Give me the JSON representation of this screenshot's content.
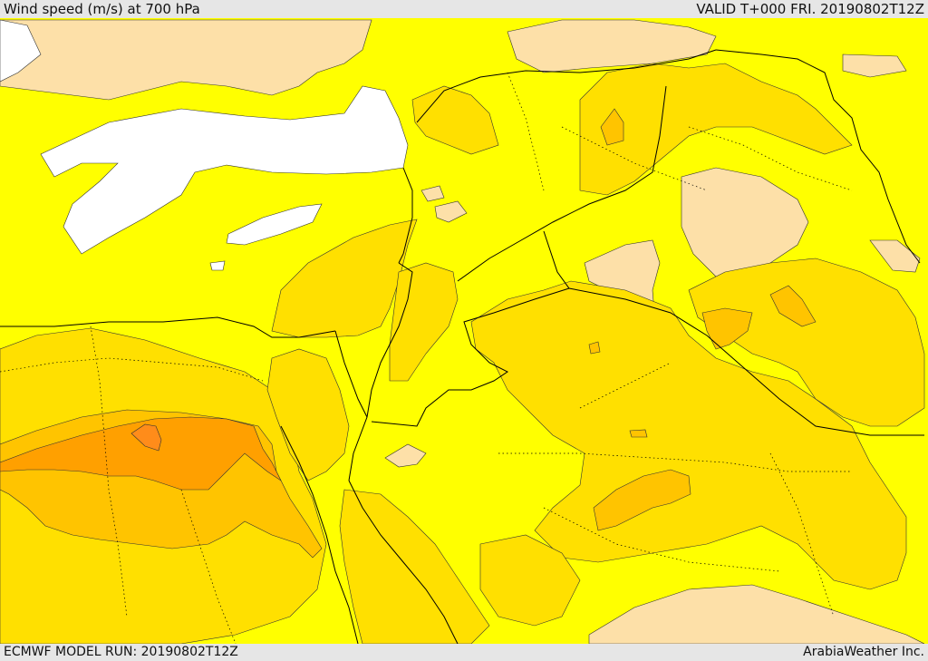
{
  "header": {
    "title": "Wind speed (m/s) at 700 hPa",
    "valid": "VALID T+000 FRI. 20190802T12Z"
  },
  "footer": {
    "model_run": "ECMWF MODEL RUN: 20190802T12Z",
    "credit": "ArabiaWeather Inc."
  },
  "map": {
    "field": "wind speed",
    "level": "700 hPa",
    "colors": {
      "calm_white": "#ffffff",
      "light_tan": "#fde0a8",
      "yellow": "#ffff00",
      "gold": "#ffe000",
      "amber": "#ffc400",
      "orange": "#ffa000",
      "dark_orange": "#ff8c1a",
      "borders": "#000000"
    }
  }
}
